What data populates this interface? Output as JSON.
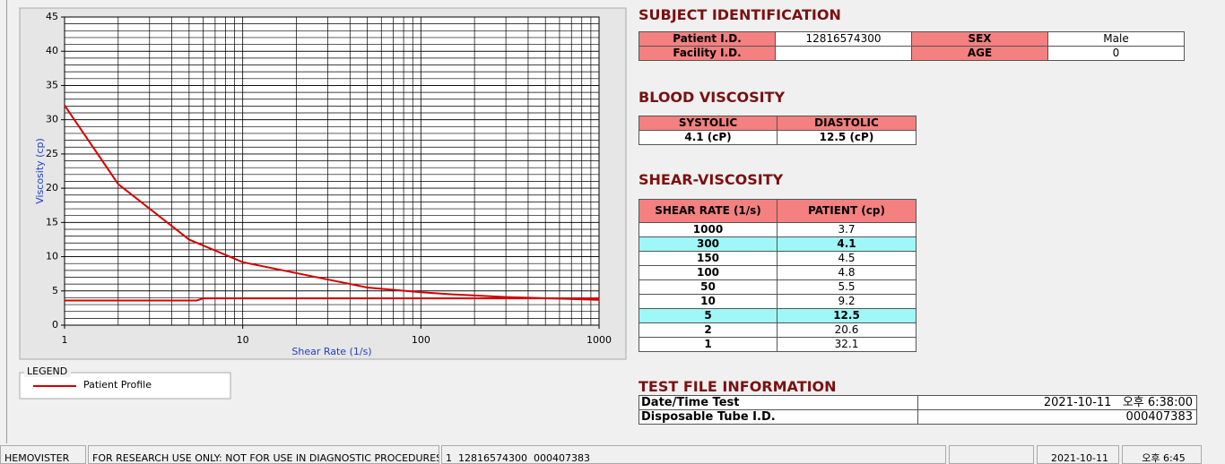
{
  "chart_data": {
    "type": "line",
    "x_label": "Shear Rate (1/s)",
    "y_label": "Viscosity (cp)",
    "xlim": [
      1,
      1000
    ],
    "xticks": [
      1,
      10,
      100,
      1000
    ],
    "xscale": "log",
    "ylim": [
      0,
      45
    ],
    "yticks": [
      0,
      5,
      10,
      15,
      20,
      25,
      30,
      35,
      40,
      45
    ],
    "grid": true,
    "series": [
      {
        "name": "Patient Profile",
        "color": "#d40000",
        "x": [
          1,
          2,
          5,
          10,
          50,
          100,
          150,
          300,
          1000
        ],
        "values": [
          32.1,
          20.6,
          12.5,
          9.2,
          5.5,
          4.8,
          4.5,
          4.1,
          3.7
        ]
      },
      {
        "color": "#d40000",
        "x": [
          1,
          5.5,
          6,
          1000
        ],
        "values": [
          3.6,
          3.6,
          3.9,
          3.9
        ]
      }
    ]
  },
  "legend": {
    "title": "LEGEND"
  },
  "subject": {
    "title": "SUBJECT IDENTIFICATION",
    "patient_id_label": "Patient I.D.",
    "patient_id": 12816574300,
    "sex_label": "SEX",
    "sex": "Male",
    "facility_label": "Facility I.D.",
    "age_label": "AGE",
    "age": 0
  },
  "blood": {
    "title": "BLOOD VISCOSITY",
    "headers": [
      "SYSTOLIC",
      "DIASTOLIC"
    ],
    "values": [
      "4.1 (cP)",
      "12.5 (cP)"
    ]
  },
  "shear": {
    "title": "SHEAR-VISCOSITY",
    "headers": [
      "SHEAR RATE (1/s)",
      "PATIENT (cp)"
    ],
    "rows": [
      [
        1000,
        3.7
      ],
      [
        300,
        4.1
      ],
      [
        150,
        4.5
      ],
      [
        100,
        4.8
      ],
      [
        50,
        5.5
      ],
      [
        10,
        9.2
      ],
      [
        5,
        12.5
      ],
      [
        2,
        20.6
      ],
      [
        1,
        32.1
      ]
    ]
  },
  "test_file": {
    "title": "TEST FILE INFORMATION",
    "date_label": "Date/Time Test",
    "date": "2021-10-11   오후 6:38:00",
    "tube_label": "Disposable Tube I.D.",
    "tube": "000407383"
  },
  "status": [
    "HEMOVISTER",
    "FOR RESEARCH USE ONLY: NOT FOR USE IN DIAGNOSTIC PROCEDURES",
    "1  12816574300  000407383",
    "2021-10-11",
    "오후 6:45"
  ]
}
